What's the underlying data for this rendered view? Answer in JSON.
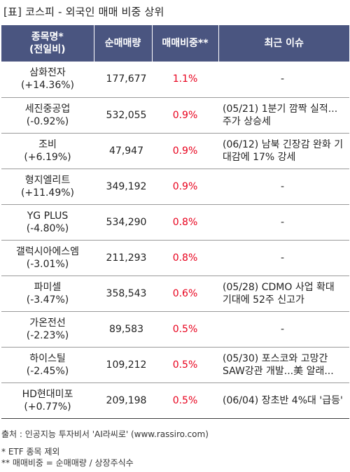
{
  "title": "[표] 코스피 - 외국인 매매 비중 상위",
  "headers": {
    "name_line1": "종목명*",
    "name_line2": "(전일비)",
    "volume": "순매매량",
    "ratio": "매매비중**",
    "issue": "최근 이슈"
  },
  "rows": [
    {
      "name": "삼화전자",
      "change": "(+14.36%)",
      "volume": "177,677",
      "ratio": "1.1%",
      "issue": "-"
    },
    {
      "name": "세진중공업",
      "change": "(-0.92%)",
      "volume": "532,055",
      "ratio": "0.9%",
      "issue": "(05/21) 1분기 깜짝 실적...주가 상승세"
    },
    {
      "name": "조비",
      "change": "(+6.19%)",
      "volume": "47,947",
      "ratio": "0.9%",
      "issue": "(06/12) 남북 긴장감 완화 기대감에 17% 강세"
    },
    {
      "name": "형지엘리트",
      "change": "(+11.49%)",
      "volume": "349,192",
      "ratio": "0.9%",
      "issue": "-"
    },
    {
      "name": "YG PLUS",
      "change": "(-4.80%)",
      "volume": "534,290",
      "ratio": "0.8%",
      "issue": "-"
    },
    {
      "name": "갤럭시아에스엠",
      "change": "(-3.01%)",
      "volume": "211,293",
      "ratio": "0.8%",
      "issue": "-"
    },
    {
      "name": "파미셀",
      "change": "(-3.47%)",
      "volume": "358,543",
      "ratio": "0.6%",
      "issue": "(05/28) CDMO 사업 확대 기대에 52주 신고가"
    },
    {
      "name": "가온전선",
      "change": "(-2.23%)",
      "volume": "89,583",
      "ratio": "0.5%",
      "issue": "-"
    },
    {
      "name": "하이스틸",
      "change": "(-2.45%)",
      "volume": "109,212",
      "ratio": "0.5%",
      "issue": "(05/30) 포스코와 고망간 SAW강관 개발...美 알래..."
    },
    {
      "name": "HD현대미포",
      "change": "(+0.77%)",
      "volume": "209,198",
      "ratio": "0.5%",
      "issue": "(06/04) 장초반 4%대 '급등'"
    }
  ],
  "footer": {
    "source": "출처 : 인공지능 투자비서 'AI라씨로' (www.rassiro.com)",
    "note1": "* ETF 종목 제외",
    "note2": "** 매매비중 = 순매매량 / 상장주식수"
  },
  "colors": {
    "header_bg": "#4a5580",
    "ratio_text": "#e8001c"
  }
}
